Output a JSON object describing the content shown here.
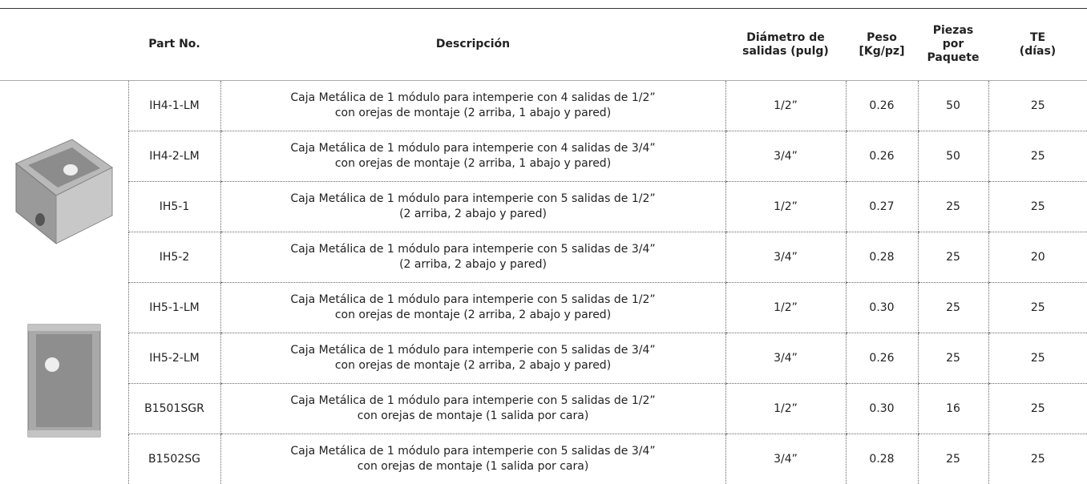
{
  "header": {
    "columns": [
      [
        "Part No."
      ],
      [
        "Descripción"
      ],
      [
        "Diámetro de",
        "salidas (pulg)"
      ],
      [
        "Peso",
        "[Kg/pz]"
      ],
      [
        "Piezas",
        "por",
        "Paquete"
      ],
      [
        "TE",
        "(días)"
      ]
    ]
  },
  "table": {
    "rows": [
      [
        "IH4-1-LM",
        [
          "Caja Metálica de 1 módulo para intemperie con 4 salidas de 1/2”",
          "con orejas de montaje (2 arriba, 1 abajo y pared)"
        ],
        "1/2”",
        "0.26",
        "50",
        "25"
      ],
      [
        "IH4-2-LM",
        [
          "Caja Metálica de 1 módulo para intemperie con 4 salidas de 3/4”",
          "con orejas de montaje (2 arriba, 1 abajo y pared)"
        ],
        "3/4”",
        "0.26",
        "50",
        "25"
      ],
      [
        "IH5-1",
        [
          "Caja Metálica de 1 módulo para intemperie con 5 salidas de 1/2”",
          "(2 arriba, 2 abajo y pared)"
        ],
        "1/2”",
        "0.27",
        "25",
        "25"
      ],
      [
        "IH5-2",
        [
          "Caja Metálica de 1 módulo para intemperie con 5 salidas de 3/4”",
          "(2 arriba, 2 abajo y pared)"
        ],
        "3/4”",
        "0.28",
        "25",
        "20"
      ],
      [
        "IH5-1-LM",
        [
          "Caja Metálica de 1 módulo para intemperie con 5 salidas de 1/2”",
          "con orejas de montaje (2 arriba, 2 abajo y pared)"
        ],
        "1/2”",
        "0.30",
        "25",
        "25"
      ],
      [
        "IH5-2-LM",
        [
          "Caja Metálica de 1 módulo para intemperie con 5 salidas de 3/4”",
          "con orejas de montaje (2 arriba, 2 abajo y pared)"
        ],
        "3/4”",
        "0.26",
        "25",
        "25"
      ],
      [
        "B1501SGR",
        [
          "Caja Metálica de 1 módulo para intemperie con 5 salidas de 1/2”",
          "con orejas de montaje (1 salida por cara)"
        ],
        "1/2”",
        "0.30",
        "16",
        "25"
      ],
      [
        "B1502SG",
        [
          "Caja Metálica de 1 módulo para intemperie con 5 salidas de 3/4”",
          "con orejas de montaje (1 salida por cara)"
        ],
        "3/4”",
        "0.28",
        "25",
        "25"
      ]
    ]
  }
}
